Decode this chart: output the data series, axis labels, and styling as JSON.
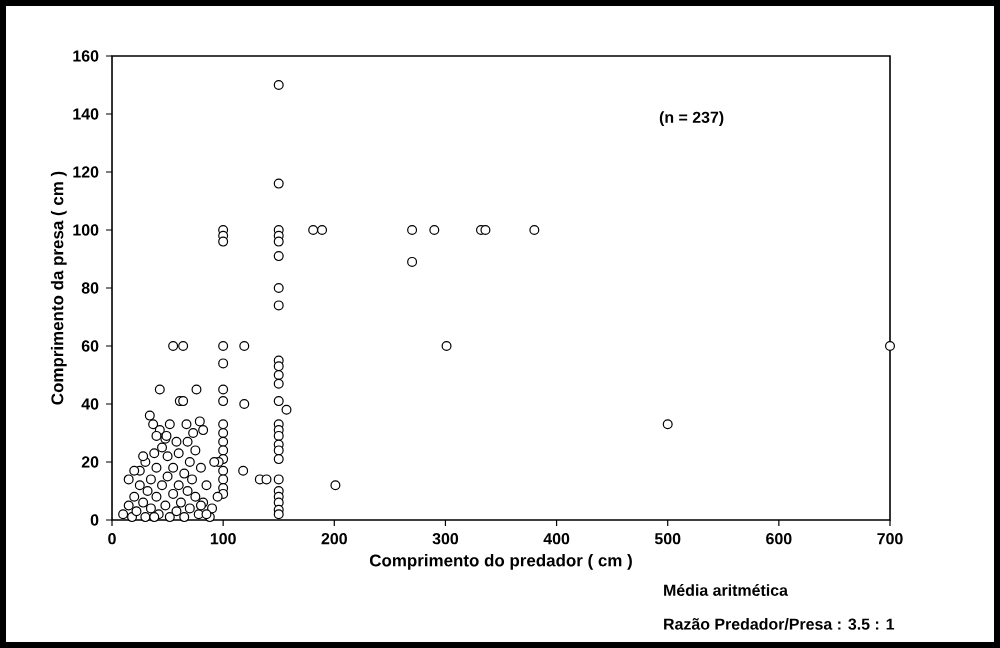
{
  "chart_data": {
    "type": "scatter",
    "xlabel": "Comprimento do predador ( cm )",
    "ylabel": "Comprimento da presa ( cm )",
    "xlim": [
      0,
      700
    ],
    "ylim": [
      0,
      160
    ],
    "xticks": [
      0,
      100,
      200,
      300,
      400,
      500,
      600,
      700
    ],
    "yticks": [
      0,
      20,
      40,
      60,
      80,
      100,
      120,
      140,
      160
    ],
    "grid": false,
    "marker": "circle",
    "annotations": [
      "(n = 237)",
      "Média aritmética",
      "Razão Predador/Presa : 3.5 : 1"
    ],
    "series": [
      {
        "color": "#000000",
        "x": [
          150,
          150,
          150,
          150,
          150,
          150,
          150,
          150,
          150,
          150,
          150,
          150,
          150,
          150,
          150,
          150,
          150,
          150,
          150,
          150,
          150,
          150,
          150,
          150,
          150,
          100,
          100,
          100,
          100,
          100,
          100,
          100,
          100,
          100,
          100,
          100,
          100,
          100,
          100,
          100,
          100,
          96,
          119,
          119,
          118,
          133,
          139,
          181,
          189,
          157,
          201,
          270,
          290,
          332,
          336,
          270,
          301,
          380,
          500,
          700,
          10,
          15,
          18,
          20,
          22,
          25,
          25,
          28,
          30,
          30,
          32,
          35,
          35,
          38,
          40,
          40,
          42,
          45,
          45,
          48,
          50,
          50,
          52,
          55,
          55,
          58,
          60,
          60,
          62,
          65,
          65,
          68,
          70,
          70,
          72,
          75,
          75,
          78,
          80,
          82,
          85,
          88,
          90,
          92,
          95,
          15,
          20,
          28,
          38,
          48,
          58,
          68,
          80,
          85,
          43,
          55,
          64,
          61,
          64,
          76,
          34,
          37,
          43,
          52,
          67,
          79,
          82,
          73,
          49,
          40
        ],
        "values": [
          150,
          116,
          100,
          98,
          96,
          91,
          80,
          74,
          55,
          53,
          50,
          47,
          41,
          33,
          31,
          29,
          26,
          24,
          21,
          14,
          10,
          8,
          6,
          3.5,
          2,
          100,
          98,
          96,
          60,
          54,
          45,
          41,
          33,
          30,
          27,
          24,
          21,
          17,
          14,
          11,
          9,
          20,
          60,
          40,
          17,
          14,
          14,
          100,
          100,
          38,
          12,
          100,
          100,
          100,
          100,
          89,
          60,
          100,
          33,
          60,
          2,
          5,
          1,
          8,
          3,
          12,
          17,
          6,
          20,
          1,
          10,
          14,
          4,
          23,
          8,
          18,
          2,
          12,
          25,
          5,
          15,
          22,
          1,
          9,
          18,
          3,
          12,
          23,
          6,
          16,
          1,
          10,
          20,
          4,
          14,
          8,
          24,
          2,
          18,
          6,
          12,
          1,
          4,
          20,
          8,
          14,
          17,
          22,
          1,
          28,
          27,
          27,
          5,
          2,
          45,
          60,
          60,
          41,
          41,
          45,
          36,
          33,
          31,
          33,
          33,
          34,
          31,
          30,
          29,
          29
        ]
      }
    ]
  }
}
